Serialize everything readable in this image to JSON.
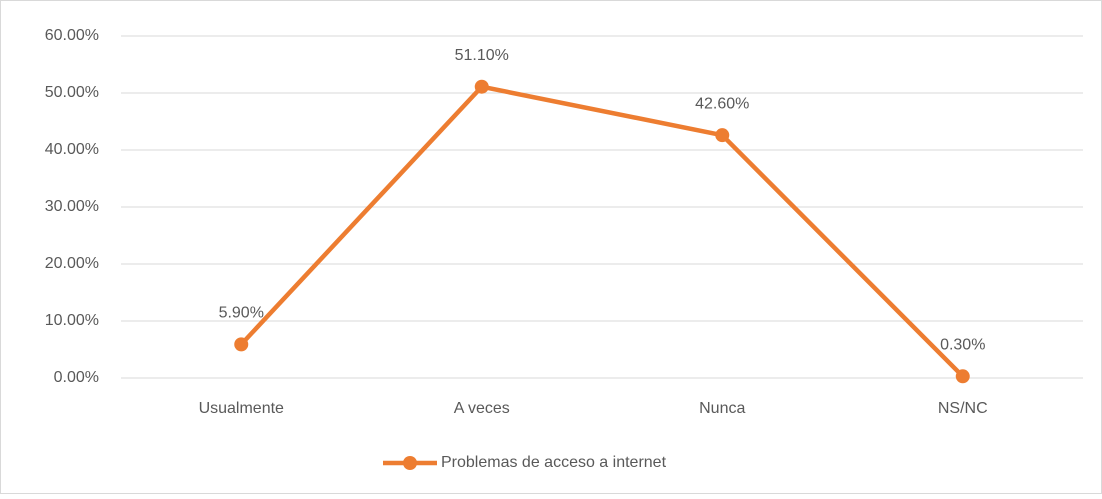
{
  "chart_data": {
    "type": "line",
    "categories": [
      "Usualmente",
      "A veces",
      "Nunca",
      "NS/NC"
    ],
    "series": [
      {
        "name": "Problemas de acceso a internet",
        "color": "#ed7d31",
        "values": [
          5.9,
          51.1,
          42.6,
          0.3
        ],
        "value_labels": [
          "5.90%",
          "51.10%",
          "42.60%",
          "0.30%"
        ]
      }
    ],
    "ylim": [
      0,
      60
    ],
    "yticks": [
      {
        "value": 0,
        "label": "0.00%"
      },
      {
        "value": 10,
        "label": "10.00%"
      },
      {
        "value": 20,
        "label": "20.00%"
      },
      {
        "value": 30,
        "label": "30.00%"
      },
      {
        "value": 40,
        "label": "40.00%"
      },
      {
        "value": 50,
        "label": "50.00%"
      },
      {
        "value": 60,
        "label": "60.00%"
      }
    ],
    "grid": true,
    "legend": "bottom"
  }
}
